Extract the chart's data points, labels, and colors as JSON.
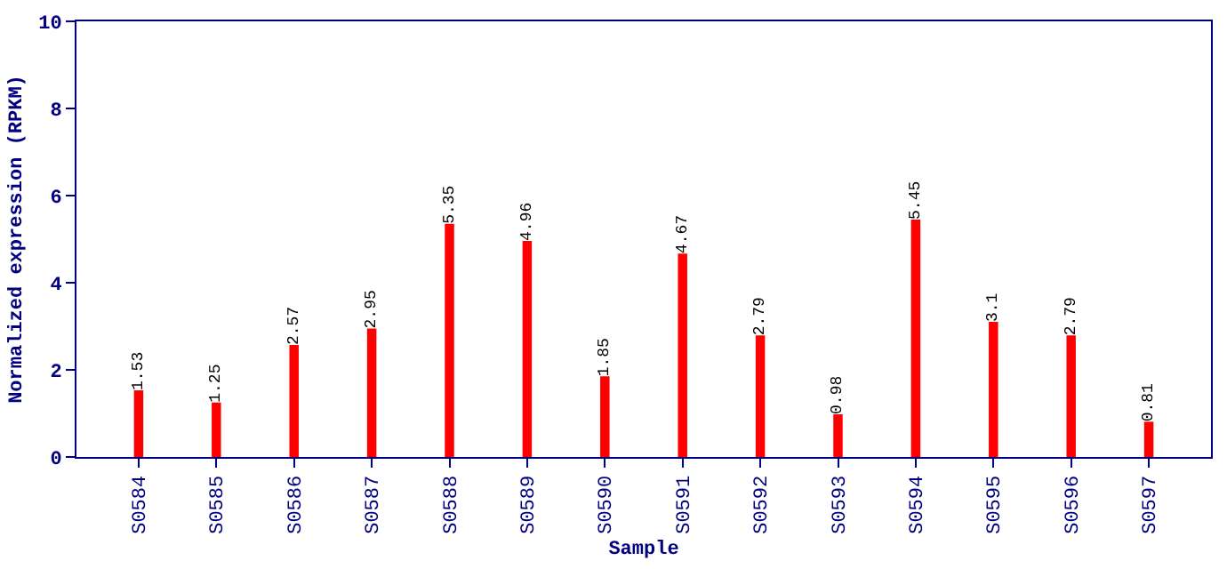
{
  "chart_data": {
    "type": "bar",
    "xlabel": "Sample",
    "ylabel": "Normalized expression (RPKM)",
    "categories": [
      "S0584",
      "S0585",
      "S0586",
      "S0587",
      "S0588",
      "S0589",
      "S0590",
      "S0591",
      "S0592",
      "S0593",
      "S0594",
      "S0595",
      "S0596",
      "S0597"
    ],
    "values": [
      1.53,
      1.25,
      2.57,
      2.95,
      5.35,
      4.96,
      1.85,
      4.67,
      2.79,
      0.98,
      5.45,
      3.1,
      2.79,
      0.81
    ],
    "color": "#ff0000",
    "ylim": [
      0,
      10
    ],
    "yticks": [
      0,
      2,
      4,
      6,
      8,
      10
    ],
    "data_labels": true
  }
}
